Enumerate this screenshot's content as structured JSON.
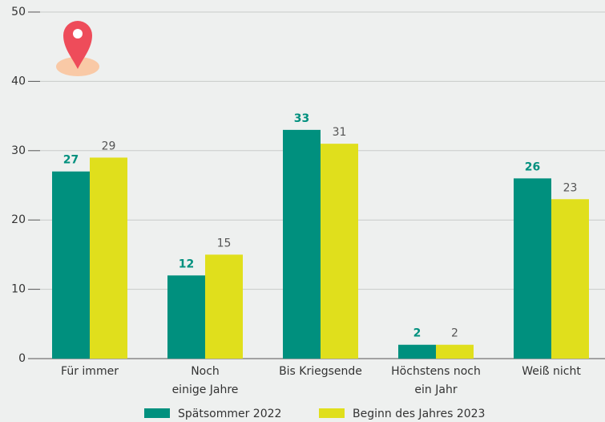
{
  "chart_data": {
    "type": "bar",
    "categories": [
      [
        "Für immer"
      ],
      [
        "Noch",
        "einige Jahre"
      ],
      [
        "Bis Kriegsende"
      ],
      [
        "Höchstens noch",
        "ein Jahr"
      ],
      [
        "Weiß nicht"
      ]
    ],
    "series": [
      {
        "name": "Spätsommer 2022",
        "color": "#00907e",
        "values": [
          27,
          12,
          33,
          2,
          26
        ]
      },
      {
        "name": "Beginn des Jahres 2023",
        "color": "#e0df1c",
        "values": [
          29,
          15,
          31,
          2,
          23
        ]
      }
    ],
    "ylim": [
      0,
      50
    ],
    "yticks": [
      0,
      10,
      20,
      30,
      40,
      50
    ],
    "grid": true,
    "legend": "bottom"
  }
}
